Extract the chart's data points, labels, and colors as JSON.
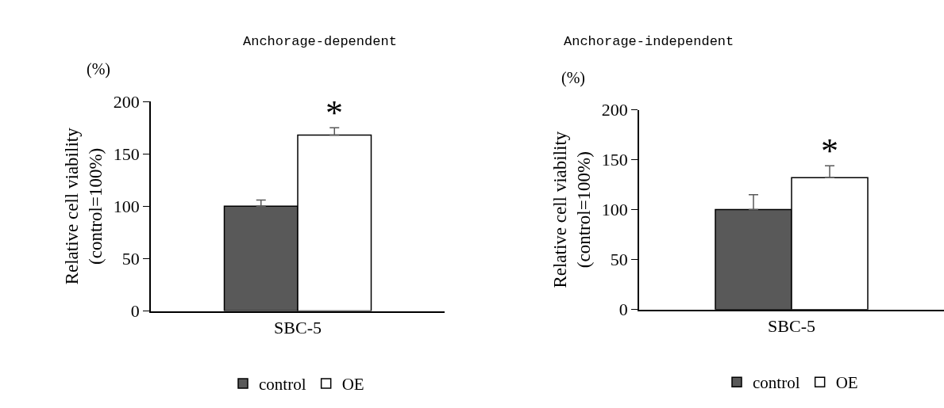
{
  "chart_data": [
    {
      "type": "bar",
      "title": "Anchorage-dependent",
      "ylabel": "Relative cell viability\n(control=100%)",
      "categories": [
        "SBC-5"
      ],
      "series": [
        {
          "name": "control",
          "color": "#595959",
          "values": [
            100
          ],
          "errors": [
            [
              100,
              106
            ]
          ]
        },
        {
          "name": "OE",
          "color": "#ffffff",
          "values": [
            168
          ],
          "errors": [
            [
              168,
              175
            ]
          ]
        }
      ],
      "ylim": [
        0,
        200
      ],
      "yticks": [
        0,
        50,
        100,
        150,
        200
      ],
      "legend": "bottom",
      "annotations": [
        "(%)",
        "*"
      ]
    },
    {
      "type": "bar",
      "title": "Anchorage-independent",
      "ylabel": "Relative cell viability\n(control=100%)",
      "categories": [
        "SBC-5"
      ],
      "series": [
        {
          "name": "control",
          "color": "#595959",
          "values": [
            100
          ],
          "errors": [
            [
              100,
              115
            ]
          ]
        },
        {
          "name": "OE",
          "color": "#ffffff",
          "values": [
            132
          ],
          "errors": [
            [
              132,
              144
            ]
          ]
        }
      ],
      "ylim": [
        0,
        200
      ],
      "yticks": [
        0,
        50,
        100,
        150,
        200
      ],
      "legend": "bottom",
      "annotations": [
        "(%)",
        "*"
      ]
    }
  ]
}
